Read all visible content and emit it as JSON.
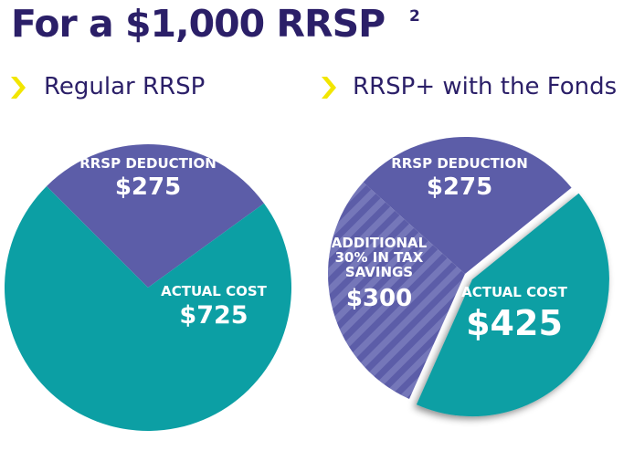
{
  "title": "For a $1,000 RRSP",
  "title_note": "2",
  "chart_data": [
    {
      "type": "pie",
      "title": "Regular RRSP",
      "labels": [
        "RRSP DEDUCTION",
        "ACTUAL COST"
      ],
      "values": [
        275,
        725
      ],
      "value_labels": [
        "$275",
        "$725"
      ],
      "colors": [
        "#5c5da8",
        "#0c9fa4"
      ]
    },
    {
      "type": "pie",
      "title": "RRSP+ with the Fonds",
      "labels": [
        "RRSP DEDUCTION",
        "ACTUAL COST",
        "ADDITIONAL 30% IN TAX SAVINGS"
      ],
      "values": [
        275,
        425,
        300
      ],
      "value_labels": [
        "$275",
        "$425",
        "$300"
      ],
      "colors": [
        "#5c5da8",
        "#0c9fa4",
        "#5c5da8"
      ]
    }
  ]
}
